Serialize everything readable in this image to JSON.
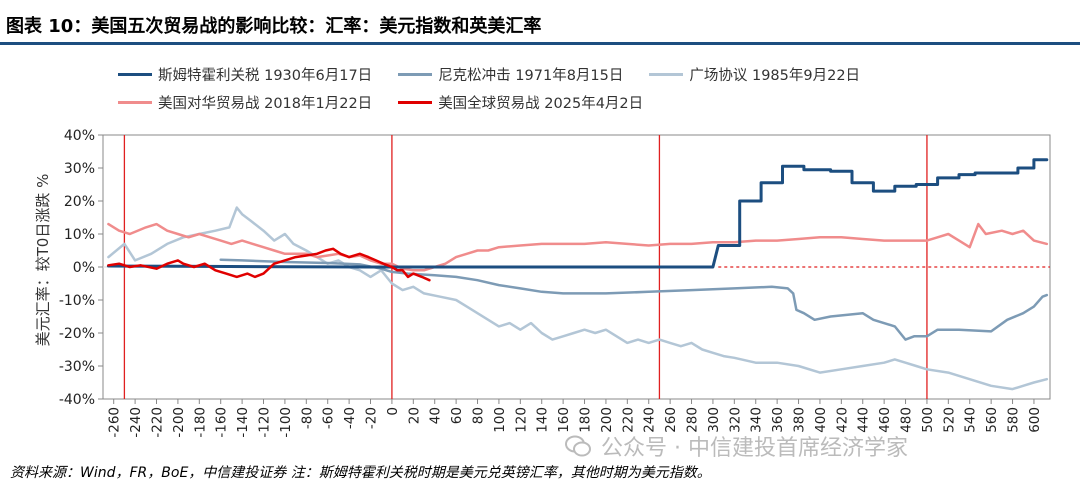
{
  "header": {
    "title": "图表 10：美国五次贸易战的影响比较：汇率：美元指数和英美汇率"
  },
  "footer": {
    "source": "资料来源：Wind，FR，BoE，中信建投证券 注：斯姆特霍利关税时期是美元兑英镑汇率，其他时期为美元指数。"
  },
  "watermark": {
    "text": "公众号 · 中信建投首席经济学家"
  },
  "colors": {
    "title_rule": "#1c4e80",
    "grid_zero": "#aaaaaa",
    "vline": "#e02020"
  },
  "chart_data": {
    "type": "line",
    "ylabel": "美元汇率：较T0日涨跌 %",
    "xlim": [
      -270,
      615
    ],
    "ylim": [
      -40,
      40
    ],
    "x_ticks": [
      -260,
      -240,
      -220,
      -200,
      -180,
      -160,
      -140,
      -120,
      -100,
      -80,
      -60,
      -40,
      -20,
      0,
      20,
      40,
      60,
      80,
      100,
      120,
      140,
      160,
      180,
      200,
      220,
      240,
      260,
      280,
      300,
      320,
      340,
      360,
      380,
      400,
      420,
      440,
      460,
      480,
      500,
      520,
      540,
      560,
      580,
      600
    ],
    "y_ticks": [
      -40,
      -30,
      -20,
      -10,
      0,
      10,
      20,
      30,
      40
    ],
    "y_tick_labels": [
      "-40%",
      "-30%",
      "-20%",
      "-10%",
      "0%",
      "10%",
      "20%",
      "30%",
      "40%"
    ],
    "vertical_lines": [
      -250,
      0,
      250,
      500
    ],
    "series": [
      {
        "name": "斯姆特霍利关税 1930年6月17日",
        "color": "#1c4e80",
        "width": 3,
        "step": true,
        "points": [
          [
            -265,
            0.3
          ],
          [
            -200,
            0.2
          ],
          [
            -100,
            0.1
          ],
          [
            -20,
            0
          ],
          [
            0,
            0
          ],
          [
            100,
            0
          ],
          [
            200,
            0
          ],
          [
            300,
            0
          ],
          [
            305,
            6.5
          ],
          [
            325,
            6.5
          ],
          [
            325,
            20
          ],
          [
            345,
            20
          ],
          [
            345,
            25.5
          ],
          [
            365,
            25.5
          ],
          [
            365,
            30.5
          ],
          [
            385,
            30.5
          ],
          [
            385,
            29.5
          ],
          [
            410,
            29.5
          ],
          [
            410,
            29
          ],
          [
            430,
            29
          ],
          [
            430,
            25.5
          ],
          [
            450,
            25.5
          ],
          [
            450,
            23
          ],
          [
            470,
            23
          ],
          [
            470,
            24.5
          ],
          [
            490,
            24.5
          ],
          [
            490,
            25
          ],
          [
            510,
            25
          ],
          [
            510,
            27
          ],
          [
            530,
            27
          ],
          [
            530,
            28
          ],
          [
            545,
            28
          ],
          [
            545,
            28.5
          ],
          [
            585,
            28.5
          ],
          [
            585,
            30
          ],
          [
            600,
            30
          ],
          [
            600,
            32.5
          ],
          [
            612,
            32.5
          ]
        ]
      },
      {
        "name": "尼克松冲击 1971年8月15日",
        "color": "#7d9bb5",
        "width": 2.5,
        "step": false,
        "points": [
          [
            -160,
            2.2
          ],
          [
            -140,
            2
          ],
          [
            -100,
            1.5
          ],
          [
            -60,
            1.2
          ],
          [
            -30,
            0.8
          ],
          [
            -10,
            -0.5
          ],
          [
            0,
            -1.5
          ],
          [
            15,
            -2
          ],
          [
            40,
            -2.5
          ],
          [
            60,
            -3
          ],
          [
            80,
            -4
          ],
          [
            100,
            -5.5
          ],
          [
            120,
            -6.5
          ],
          [
            140,
            -7.5
          ],
          [
            160,
            -8
          ],
          [
            200,
            -8
          ],
          [
            240,
            -7.5
          ],
          [
            280,
            -7
          ],
          [
            320,
            -6.5
          ],
          [
            355,
            -6
          ],
          [
            370,
            -6.5
          ],
          [
            375,
            -8
          ],
          [
            378,
            -13
          ],
          [
            385,
            -14
          ],
          [
            395,
            -16
          ],
          [
            410,
            -15
          ],
          [
            440,
            -14
          ],
          [
            450,
            -16
          ],
          [
            470,
            -18
          ],
          [
            480,
            -22
          ],
          [
            488,
            -21
          ],
          [
            500,
            -21
          ],
          [
            510,
            -19
          ],
          [
            530,
            -19
          ],
          [
            560,
            -19.5
          ],
          [
            575,
            -16
          ],
          [
            590,
            -14
          ],
          [
            600,
            -12
          ],
          [
            608,
            -9
          ],
          [
            612,
            -8.5
          ]
        ]
      },
      {
        "name": "广场协议 1985年9月22日",
        "color": "#b3c6d6",
        "width": 2.5,
        "step": false,
        "points": [
          [
            -265,
            3
          ],
          [
            -250,
            7
          ],
          [
            -240,
            2
          ],
          [
            -225,
            4
          ],
          [
            -210,
            7
          ],
          [
            -195,
            9
          ],
          [
            -180,
            10
          ],
          [
            -165,
            11
          ],
          [
            -152,
            12
          ],
          [
            -145,
            18
          ],
          [
            -140,
            16
          ],
          [
            -132,
            14
          ],
          [
            -120,
            11
          ],
          [
            -110,
            8
          ],
          [
            -100,
            10
          ],
          [
            -92,
            7
          ],
          [
            -80,
            5
          ],
          [
            -70,
            3
          ],
          [
            -60,
            1
          ],
          [
            -50,
            2
          ],
          [
            -40,
            0
          ],
          [
            -30,
            -1
          ],
          [
            -20,
            -3
          ],
          [
            -10,
            -1
          ],
          [
            0,
            -5
          ],
          [
            10,
            -7
          ],
          [
            20,
            -6
          ],
          [
            30,
            -8
          ],
          [
            45,
            -9
          ],
          [
            60,
            -10
          ],
          [
            70,
            -12
          ],
          [
            80,
            -14
          ],
          [
            90,
            -16
          ],
          [
            100,
            -18
          ],
          [
            110,
            -17
          ],
          [
            120,
            -19
          ],
          [
            130,
            -17
          ],
          [
            140,
            -20
          ],
          [
            150,
            -22
          ],
          [
            160,
            -21
          ],
          [
            170,
            -20
          ],
          [
            180,
            -19
          ],
          [
            190,
            -20
          ],
          [
            200,
            -19
          ],
          [
            210,
            -21
          ],
          [
            220,
            -23
          ],
          [
            230,
            -22
          ],
          [
            240,
            -23
          ],
          [
            250,
            -22
          ],
          [
            260,
            -23
          ],
          [
            270,
            -24
          ],
          [
            280,
            -23
          ],
          [
            290,
            -25
          ],
          [
            300,
            -26
          ],
          [
            310,
            -27
          ],
          [
            320,
            -27.5
          ],
          [
            340,
            -29
          ],
          [
            360,
            -29
          ],
          [
            380,
            -30
          ],
          [
            400,
            -32
          ],
          [
            420,
            -31
          ],
          [
            440,
            -30
          ],
          [
            460,
            -29
          ],
          [
            470,
            -28
          ],
          [
            480,
            -29
          ],
          [
            490,
            -30
          ],
          [
            500,
            -31
          ],
          [
            520,
            -32
          ],
          [
            540,
            -34
          ],
          [
            560,
            -36
          ],
          [
            580,
            -37
          ],
          [
            590,
            -36
          ],
          [
            600,
            -35
          ],
          [
            612,
            -34
          ]
        ]
      },
      {
        "name": "美国对华贸易战 2018年1月22日",
        "color": "#f08c8c",
        "width": 2.5,
        "step": false,
        "points": [
          [
            -265,
            13
          ],
          [
            -255,
            11
          ],
          [
            -245,
            10
          ],
          [
            -230,
            12
          ],
          [
            -220,
            13
          ],
          [
            -210,
            11
          ],
          [
            -200,
            10
          ],
          [
            -190,
            9
          ],
          [
            -180,
            10
          ],
          [
            -170,
            9
          ],
          [
            -160,
            8
          ],
          [
            -150,
            7
          ],
          [
            -140,
            8
          ],
          [
            -130,
            7
          ],
          [
            -120,
            6
          ],
          [
            -110,
            5
          ],
          [
            -100,
            4
          ],
          [
            -90,
            4
          ],
          [
            -80,
            4
          ],
          [
            -70,
            3
          ],
          [
            -60,
            3.5
          ],
          [
            -50,
            4
          ],
          [
            -40,
            3
          ],
          [
            -30,
            3.5
          ],
          [
            -20,
            2
          ],
          [
            -10,
            1
          ],
          [
            0,
            1
          ],
          [
            10,
            -0.5
          ],
          [
            20,
            -1
          ],
          [
            30,
            -1
          ],
          [
            40,
            0
          ],
          [
            50,
            1
          ],
          [
            60,
            3
          ],
          [
            70,
            4
          ],
          [
            80,
            5
          ],
          [
            90,
            5
          ],
          [
            100,
            6
          ],
          [
            120,
            6.5
          ],
          [
            140,
            7
          ],
          [
            160,
            7
          ],
          [
            180,
            7
          ],
          [
            200,
            7.5
          ],
          [
            220,
            7
          ],
          [
            240,
            6.5
          ],
          [
            260,
            7
          ],
          [
            280,
            7
          ],
          [
            300,
            7.5
          ],
          [
            320,
            7.5
          ],
          [
            340,
            8
          ],
          [
            360,
            8
          ],
          [
            380,
            8.5
          ],
          [
            400,
            9
          ],
          [
            420,
            9
          ],
          [
            440,
            8.5
          ],
          [
            460,
            8
          ],
          [
            480,
            8
          ],
          [
            500,
            8
          ],
          [
            510,
            9
          ],
          [
            520,
            10
          ],
          [
            530,
            8
          ],
          [
            540,
            6
          ],
          [
            548,
            13
          ],
          [
            555,
            10
          ],
          [
            570,
            11
          ],
          [
            580,
            10
          ],
          [
            590,
            11
          ],
          [
            600,
            8
          ],
          [
            612,
            7
          ]
        ]
      },
      {
        "name": "美国全球贸易战 2025年4月2日",
        "color": "#e00000",
        "width": 2.5,
        "step": false,
        "points": [
          [
            -265,
            0.5
          ],
          [
            -255,
            1
          ],
          [
            -245,
            0
          ],
          [
            -235,
            0.5
          ],
          [
            -220,
            -0.5
          ],
          [
            -210,
            1
          ],
          [
            -200,
            2
          ],
          [
            -195,
            1
          ],
          [
            -185,
            0
          ],
          [
            -175,
            1
          ],
          [
            -165,
            -1
          ],
          [
            -155,
            -2
          ],
          [
            -145,
            -3
          ],
          [
            -135,
            -2
          ],
          [
            -128,
            -3
          ],
          [
            -120,
            -2
          ],
          [
            -110,
            1
          ],
          [
            -100,
            2
          ],
          [
            -90,
            3
          ],
          [
            -80,
            3.5
          ],
          [
            -70,
            4
          ],
          [
            -62,
            5
          ],
          [
            -55,
            5.5
          ],
          [
            -48,
            4
          ],
          [
            -40,
            3
          ],
          [
            -30,
            4
          ],
          [
            -22,
            3
          ],
          [
            -15,
            2
          ],
          [
            -8,
            1
          ],
          [
            0,
            0
          ],
          [
            5,
            -1
          ],
          [
            10,
            -1
          ],
          [
            15,
            -3
          ],
          [
            20,
            -2
          ],
          [
            28,
            -3
          ],
          [
            35,
            -4
          ]
        ]
      }
    ]
  }
}
